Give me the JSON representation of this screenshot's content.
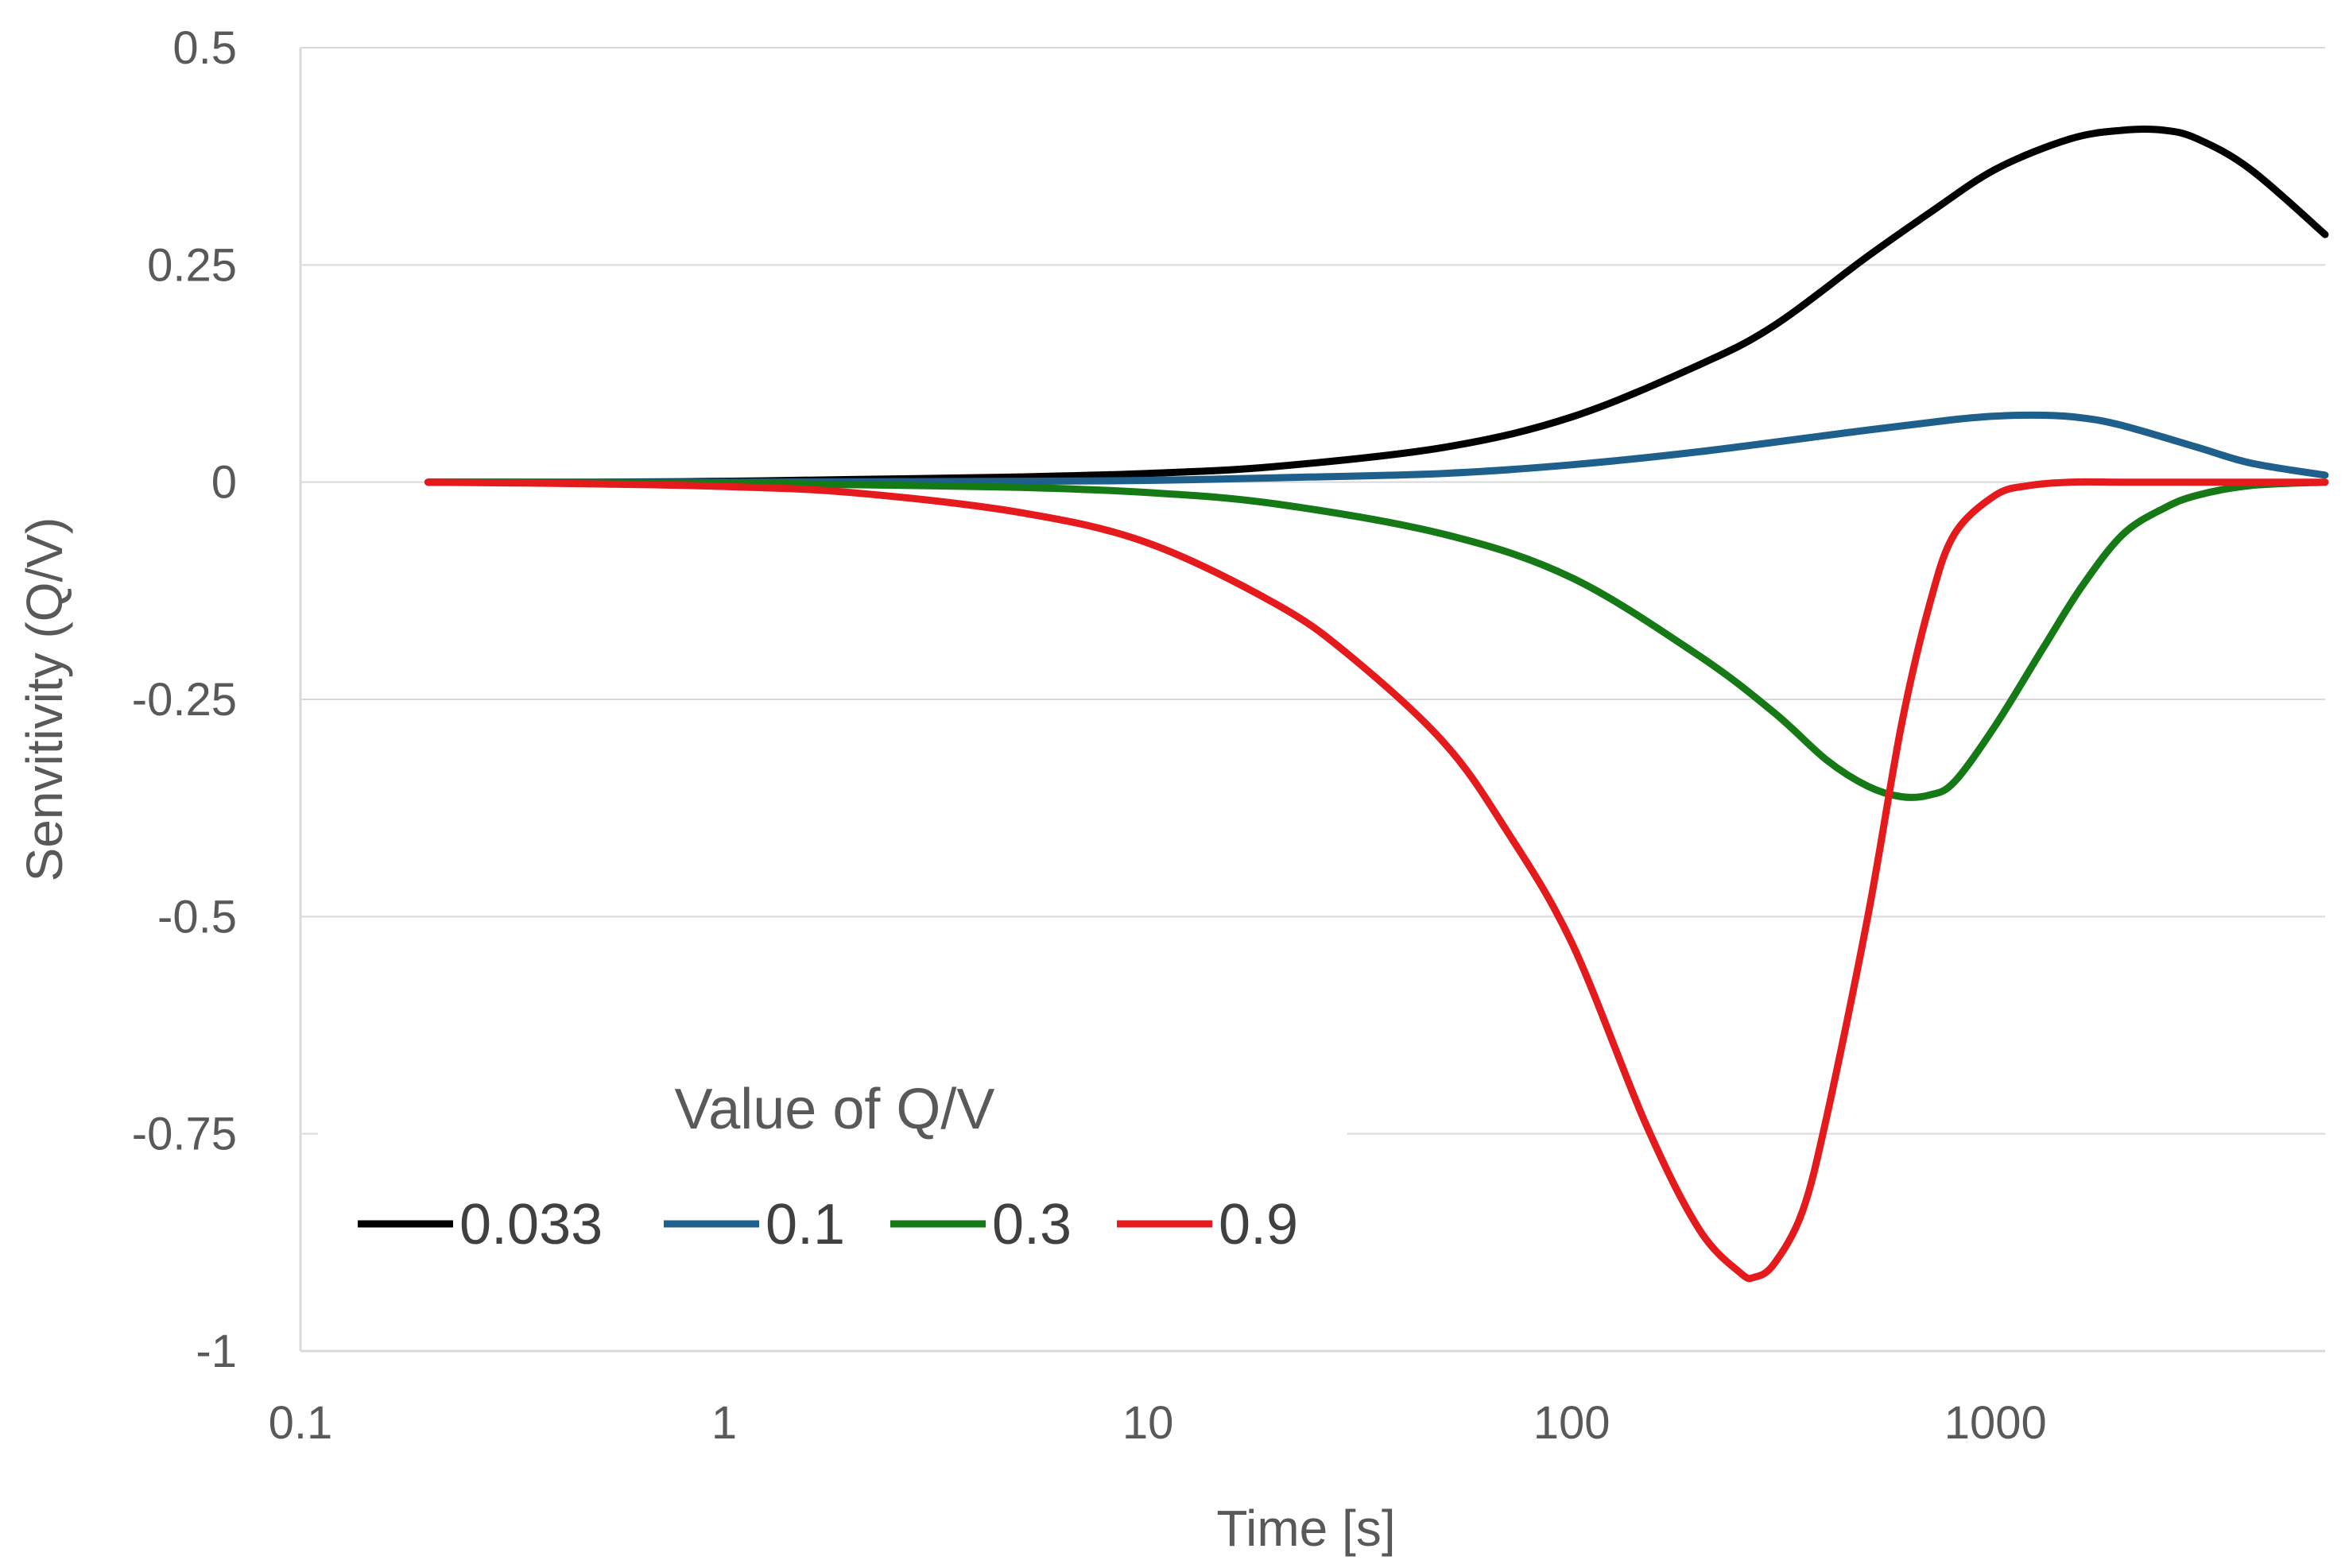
{
  "chart_data": {
    "type": "line",
    "title": "",
    "xlabel": "Time [s]",
    "ylabel": "Senvitivity (Q/V)",
    "x_scale": "log",
    "xlim": [
      0.1,
      6000
    ],
    "ylim": [
      -1,
      0.5
    ],
    "grid": "horizontal",
    "x_ticks": [
      0.1,
      1,
      10,
      100,
      1000
    ],
    "x_tick_labels": [
      "0.1",
      "1",
      "10",
      "100",
      "1000"
    ],
    "y_ticks": [
      0.5,
      0.25,
      0,
      -0.25,
      -0.5,
      -0.75,
      -1
    ],
    "y_tick_labels": [
      "0.5",
      "0.25",
      "0",
      "-0.25",
      "-0.5",
      "-0.75",
      "-1"
    ],
    "legend": {
      "title": "Value of Q/V",
      "position": "bottom-left"
    },
    "series": [
      {
        "name": "0.033",
        "color": "#000000",
        "x": [
          0.2,
          0.5,
          1,
          2,
          5,
          10,
          20,
          50,
          100,
          200,
          300,
          500,
          700,
          1000,
          1500,
          2000,
          2500,
          3000,
          4000,
          6000
        ],
        "y": [
          0,
          0,
          0.001,
          0.003,
          0.006,
          0.01,
          0.018,
          0.04,
          0.075,
          0.135,
          0.18,
          0.26,
          0.31,
          0.36,
          0.395,
          0.405,
          0.405,
          0.395,
          0.36,
          0.285
        ]
      },
      {
        "name": "0.1",
        "color": "#1f5f8b",
        "x": [
          0.2,
          1,
          5,
          10,
          20,
          50,
          100,
          200,
          500,
          800,
          1000,
          1300,
          1600,
          2000,
          3000,
          4000,
          6000
        ],
        "y": [
          0,
          0,
          0.001,
          0.002,
          0.005,
          0.01,
          0.02,
          0.035,
          0.06,
          0.072,
          0.076,
          0.077,
          0.074,
          0.065,
          0.04,
          0.022,
          0.008
        ]
      },
      {
        "name": "0.3",
        "color": "#157a15",
        "x": [
          0.2,
          1,
          2,
          5,
          10,
          20,
          50,
          100,
          200,
          300,
          400,
          500,
          600,
          700,
          800,
          1000,
          1300,
          1600,
          2000,
          2500,
          3000,
          4000,
          6000
        ],
        "y": [
          0,
          -0.001,
          -0.003,
          -0.006,
          -0.012,
          -0.025,
          -0.06,
          -0.11,
          -0.2,
          -0.265,
          -0.32,
          -0.35,
          -0.362,
          -0.36,
          -0.345,
          -0.28,
          -0.19,
          -0.12,
          -0.06,
          -0.03,
          -0.015,
          -0.004,
          0
        ]
      },
      {
        "name": "0.9",
        "color": "#e41a1c",
        "x": [
          0.2,
          0.5,
          1,
          2,
          5,
          10,
          20,
          30,
          50,
          70,
          100,
          150,
          200,
          250,
          270,
          300,
          350,
          400,
          500,
          600,
          700,
          800,
          1000,
          1200,
          1500,
          2000,
          3000,
          6000
        ],
        "y": [
          0,
          -0.002,
          -0.005,
          -0.012,
          -0.035,
          -0.07,
          -0.14,
          -0.2,
          -0.3,
          -0.4,
          -0.53,
          -0.74,
          -0.86,
          -0.91,
          -0.915,
          -0.9,
          -0.84,
          -0.73,
          -0.5,
          -0.28,
          -0.14,
          -0.06,
          -0.015,
          -0.004,
          0,
          0,
          0,
          0
        ]
      }
    ]
  }
}
